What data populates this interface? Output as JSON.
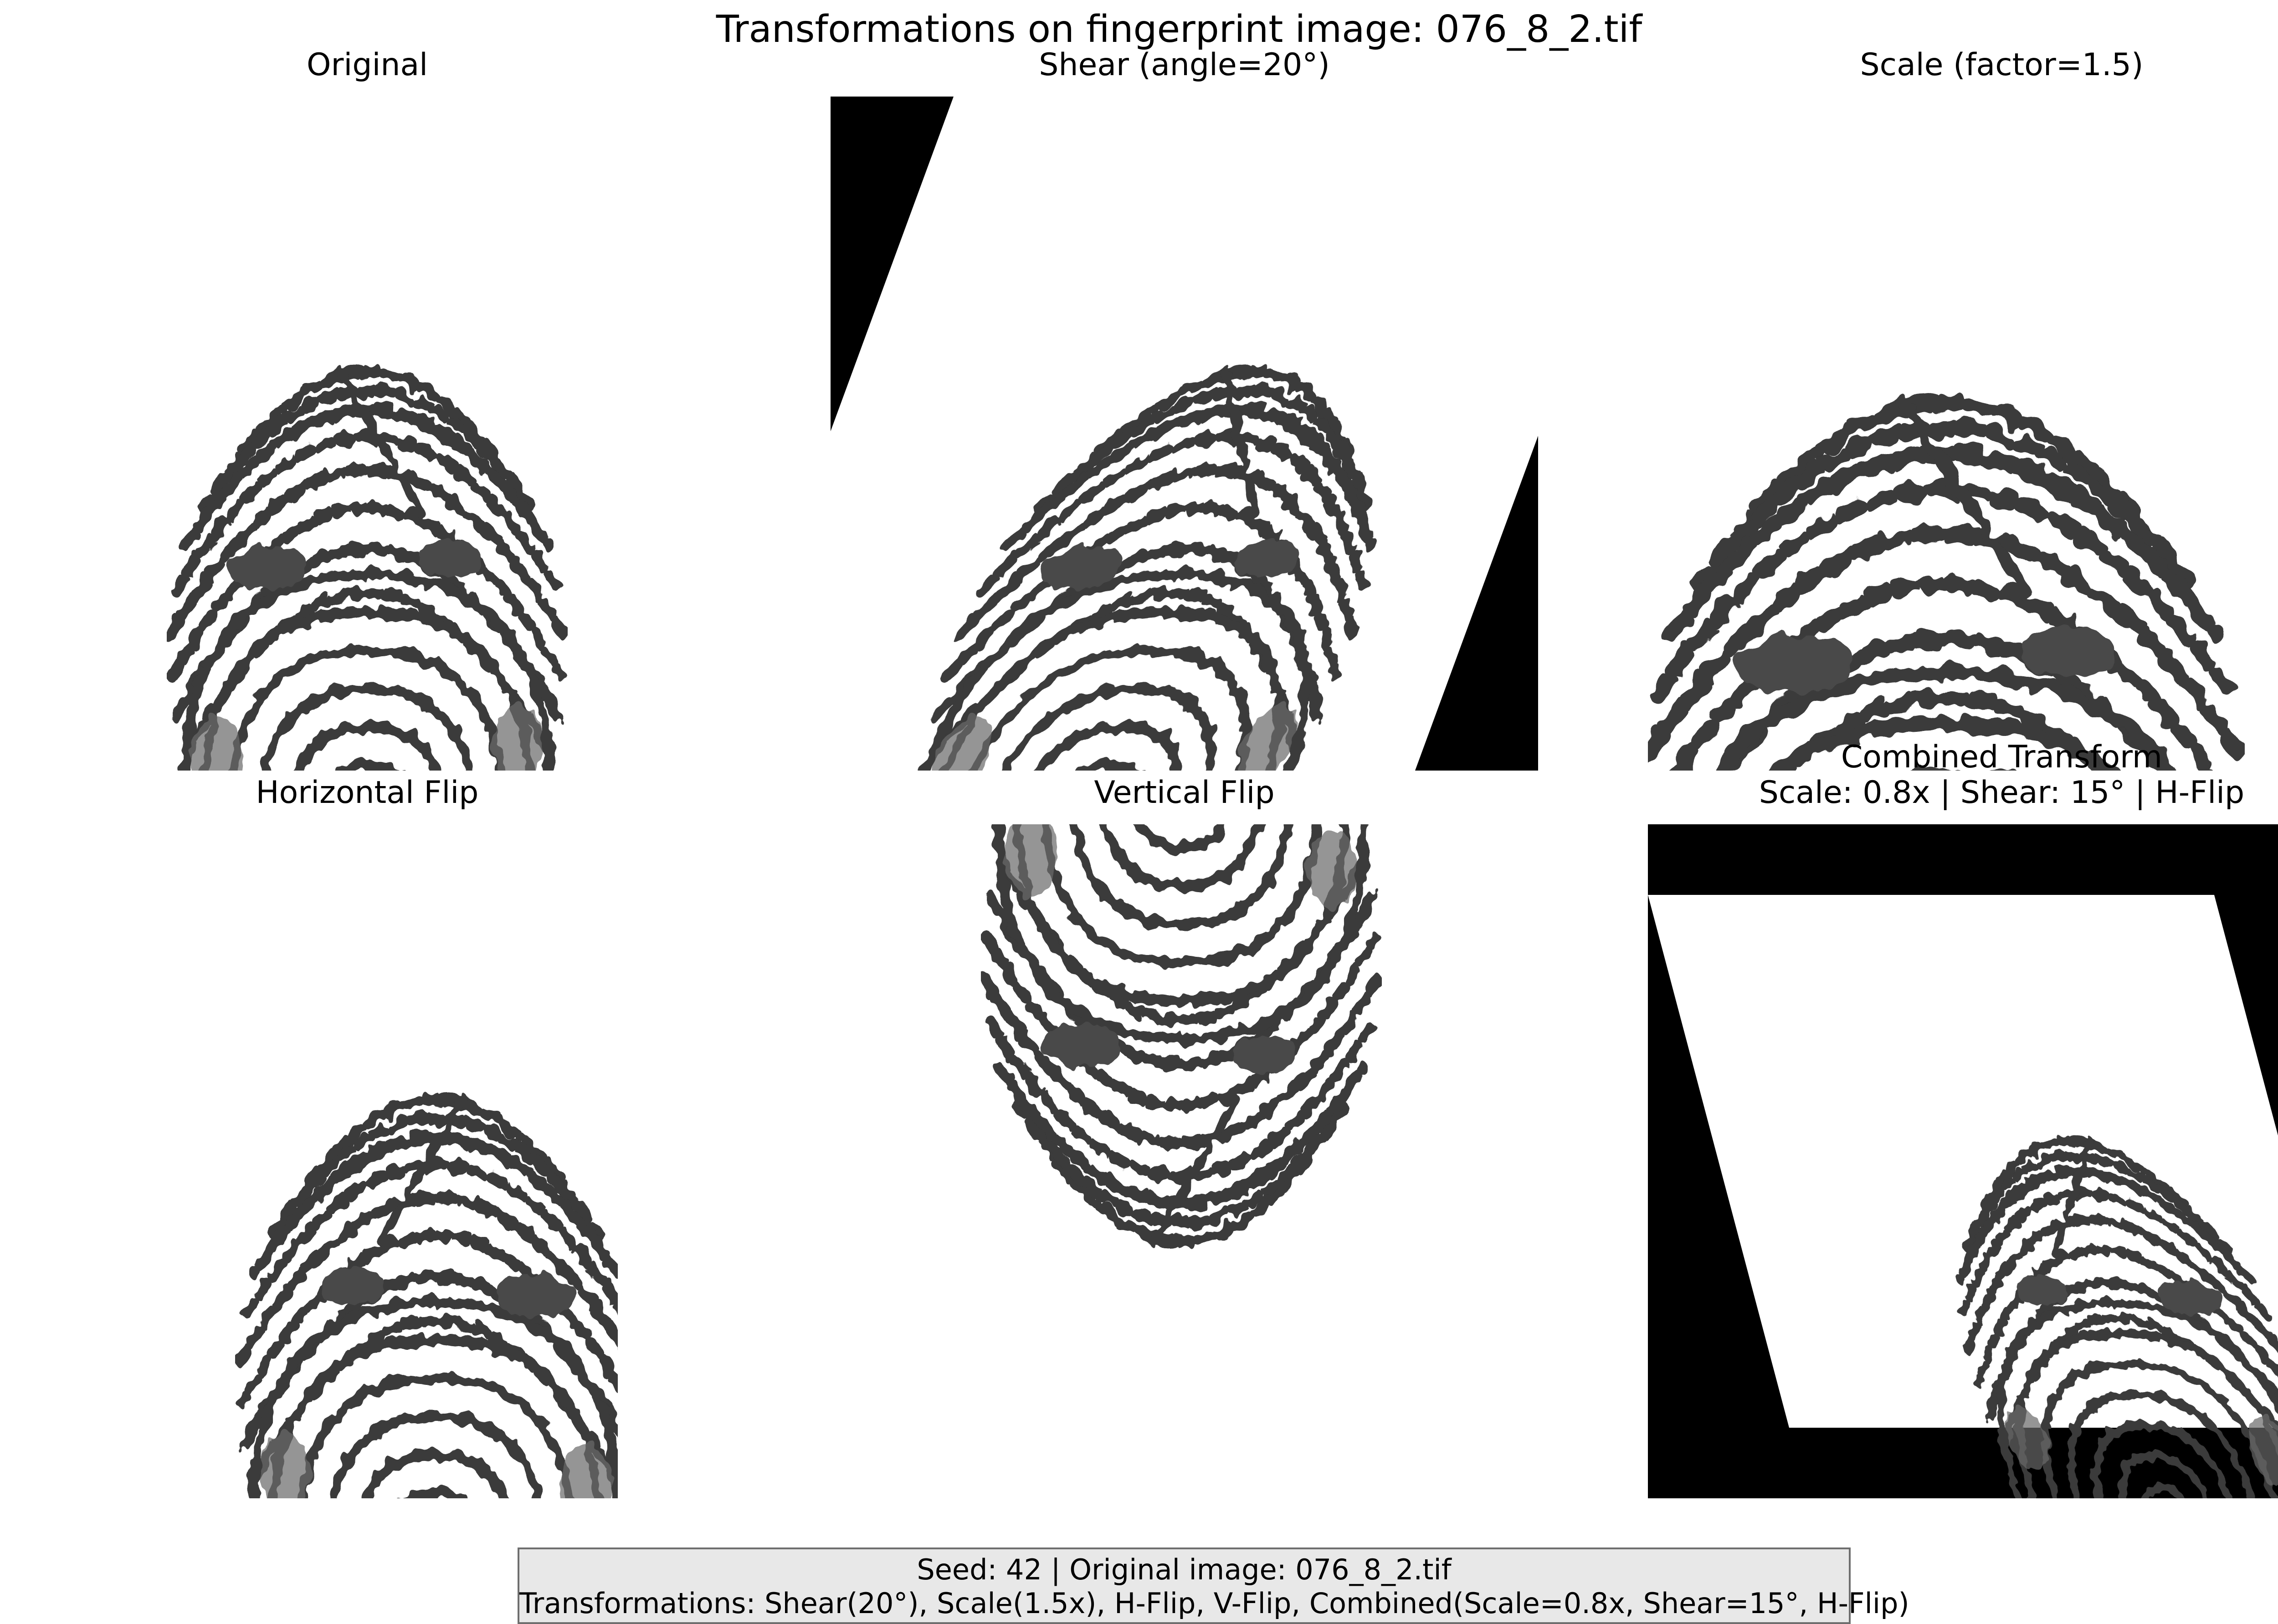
{
  "figure": {
    "title": "Transformations on fingerprint image: 076_8_2.tif"
  },
  "panels": [
    {
      "title": "Original"
    },
    {
      "title": "Shear (angle=20°)"
    },
    {
      "title": "Scale (factor=1.5)"
    },
    {
      "title": "Horizontal Flip"
    },
    {
      "title": "Vertical Flip"
    },
    {
      "title_line1": "Combined Transform",
      "title_line2": "Scale: 0.8x | Shear: 15° | H-Flip"
    }
  ],
  "footer": {
    "line1": "Seed: 42 | Original image: 076_8_2.tif",
    "line2": "Transformations: Shear(20°), Scale(1.5x), H-Flip, V-Flip, Combined(Scale=0.8x, Shear=15°, H-Flip)"
  },
  "colors": {
    "background": "#ffffff",
    "padding_fill": "#000000",
    "footer_box": "#e8e8e8",
    "footer_border": "#6e6e6e",
    "fingerprint_ink": "#3a3a3a"
  }
}
